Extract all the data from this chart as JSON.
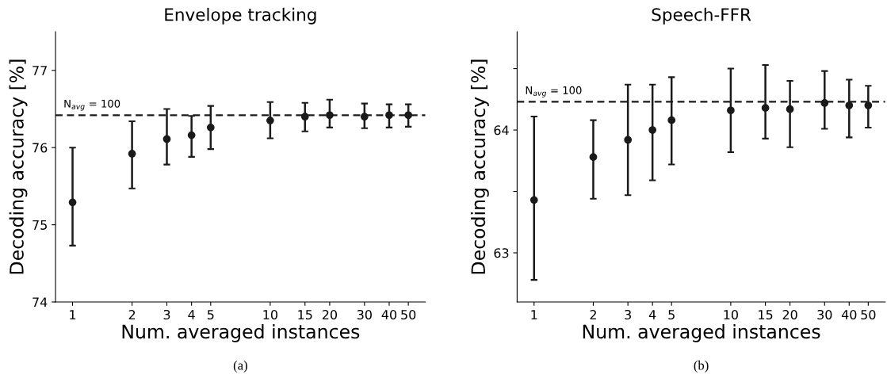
{
  "chart_data": [
    {
      "type": "scatter",
      "title": "Envelope tracking",
      "xlabel": "Num. averaged instances",
      "ylabel": "Decoding accuracy [%]",
      "log": "x",
      "marker": "circle",
      "grid": false,
      "x": [
        1,
        2,
        3,
        4,
        5,
        10,
        15,
        20,
        30,
        40,
        50
      ],
      "series": [
        {
          "color": "#1a1a1a",
          "values": [
            75.29,
            75.92,
            76.11,
            76.16,
            76.26,
            76.35,
            76.4,
            76.42,
            76.4,
            76.42,
            76.42
          ],
          "errors": [
            [
              74.73,
              76.0
            ],
            [
              75.47,
              76.34
            ],
            [
              75.78,
              76.5
            ],
            [
              75.88,
              76.41
            ],
            [
              75.98,
              76.54
            ],
            [
              76.12,
              76.59
            ],
            [
              76.21,
              76.58
            ],
            [
              76.26,
              76.62
            ],
            [
              76.25,
              76.57
            ],
            [
              76.26,
              76.56
            ],
            [
              76.27,
              76.56
            ]
          ]
        }
      ],
      "xlim": [
        0.82,
        61
      ],
      "xticks": [
        1,
        2,
        3,
        4,
        5,
        10,
        15,
        20,
        30,
        40,
        50
      ],
      "ylim": [
        74,
        77.5
      ],
      "yticks": [
        74,
        75,
        76,
        77
      ],
      "ref_lines": [
        {
          "axis": "y",
          "value": 76.42,
          "color": "#1a1a1a",
          "line_style": "dashed"
        }
      ],
      "annotations": [
        {
          "text": "N$_{avg}$ = 100",
          "x": 0.9,
          "y": 76.42
        },
        "(a)"
      ]
    },
    {
      "type": "scatter",
      "title": "Speech-FFR",
      "xlabel": "Num. averaged instances",
      "ylabel": "Decoding accuracy [%]",
      "log": "x",
      "marker": "circle",
      "grid": false,
      "x": [
        1,
        2,
        3,
        4,
        5,
        10,
        15,
        20,
        30,
        40,
        50
      ],
      "series": [
        {
          "color": "#1a1a1a",
          "values": [
            63.43,
            63.78,
            63.92,
            64.0,
            64.08,
            64.16,
            64.18,
            64.17,
            64.22,
            64.2,
            64.2
          ],
          "errors": [
            [
              62.78,
              64.11
            ],
            [
              63.44,
              64.08
            ],
            [
              63.47,
              64.37
            ],
            [
              63.59,
              64.37
            ],
            [
              63.72,
              64.43
            ],
            [
              63.82,
              64.5
            ],
            [
              63.93,
              64.53
            ],
            [
              63.86,
              64.4
            ],
            [
              64.01,
              64.48
            ],
            [
              63.94,
              64.41
            ],
            [
              64.02,
              64.36
            ]
          ]
        }
      ],
      "xlim": [
        0.82,
        61
      ],
      "xticks": [
        1,
        2,
        3,
        4,
        5,
        10,
        15,
        20,
        30,
        40,
        50
      ],
      "ylim": [
        62.6,
        64.8
      ],
      "yticks": [
        {
          "value": 63,
          "label": "63"
        },
        {
          "value": 63.5,
          "label": null
        },
        {
          "value": 64,
          "label": "64"
        },
        {
          "value": 64.5,
          "label": null
        }
      ],
      "ref_lines": [
        {
          "axis": "y",
          "value": 64.23,
          "color": "#1a1a1a",
          "line_style": "dashed"
        }
      ],
      "annotations": [
        {
          "text": "N$_{avg}$ = 100",
          "x": 0.9,
          "y": 64.23
        },
        "(b)"
      ]
    }
  ]
}
